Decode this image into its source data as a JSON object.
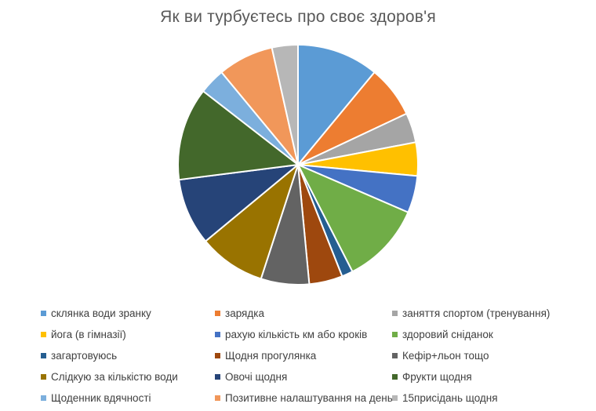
{
  "chart_data": {
    "type": "pie",
    "title": "Як ви турбуєтесь про своє здоров'я",
    "legend_position": "bottom",
    "slices": [
      {
        "label": "склянка води зранку",
        "value": 11,
        "color": "#5B9BD5"
      },
      {
        "label": "зарядка",
        "value": 7,
        "color": "#ED7D31"
      },
      {
        "label": "заняття спортом (тренування)",
        "value": 4,
        "color": "#A5A5A5"
      },
      {
        "label": "йога (в гімназії)",
        "value": 4.5,
        "color": "#FFC000"
      },
      {
        "label": "рахую кількість км або кроків",
        "value": 5,
        "color": "#4472C4"
      },
      {
        "label": "здоровий сніданок",
        "value": 11,
        "color": "#70AD47"
      },
      {
        "label": "загартовуюсь",
        "value": 1.5,
        "color": "#255E91"
      },
      {
        "label": "Щодня прогулянка",
        "value": 4.5,
        "color": "#9E480E"
      },
      {
        "label": "Кефір+льон  тощо",
        "value": 6.5,
        "color": "#636363"
      },
      {
        "label": "Слідкую за кількістю води",
        "value": 9,
        "color": "#997300"
      },
      {
        "label": "Овочі щодня",
        "value": 9,
        "color": "#264478"
      },
      {
        "label": "Фрукти щодня",
        "value": 12.5,
        "color": "#43682B"
      },
      {
        "label": "Щоденник вдячності",
        "value": 3.5,
        "color": "#7CAFDD"
      },
      {
        "label": "Позитивне налаштування на день",
        "value": 7.5,
        "color": "#F1975A"
      },
      {
        "label": "15присідань щодня",
        "value": 3.5,
        "color": "#B7B7B7"
      }
    ]
  }
}
